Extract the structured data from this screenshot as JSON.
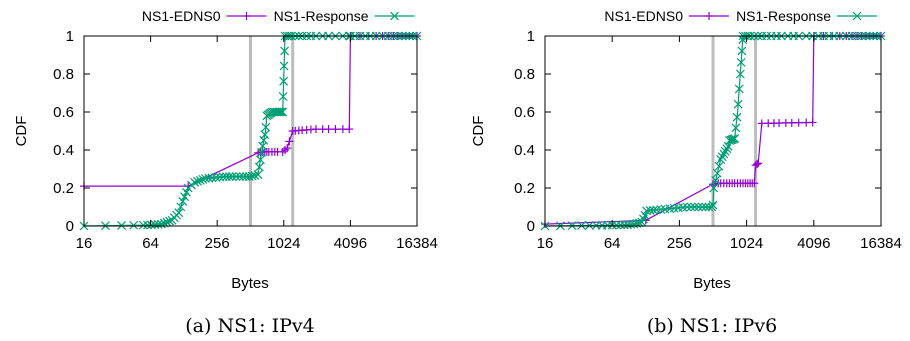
{
  "figure": {
    "panels": [
      {
        "caption": "(a)  NS1: IPv4",
        "chart_data": {
          "type": "line",
          "xlabel": "Bytes",
          "ylabel": "CDF",
          "xscale": "log2",
          "xlim": [
            16,
            16384
          ],
          "ylim": [
            0,
            1
          ],
          "xticks": [
            "16",
            "64",
            "256",
            "1024",
            "4096",
            "16384"
          ],
          "yticks": [
            "0",
            "0.2",
            "0.4",
            "0.6",
            "0.8",
            "1"
          ],
          "grid": false,
          "legend": "top-center",
          "vlines": [
            512,
            1232
          ],
          "series": [
            {
              "name": "NS1-EDNS0",
              "color": "#9400d3",
              "marker": "plus",
              "x": [
                16,
                140,
                600,
                650,
                1000,
                1100,
                1232,
                2000,
                4000,
                4096,
                16384
              ],
              "y": [
                0.21,
                0.21,
                0.385,
                0.39,
                0.39,
                0.41,
                0.5,
                0.51,
                0.51,
                1.0,
                1.0
              ],
              "markers_x": [
                16,
                140,
                600,
                630,
                660,
                690,
                720,
                750,
                800,
                850,
                900,
                1000,
                1050,
                1100,
                1150,
                1232,
                1300,
                1400,
                1500,
                1650,
                1800,
                2000,
                2300,
                2600,
                3000,
                3500,
                4000,
                4096,
                5000,
                6000,
                7000,
                8000,
                9000,
                10000,
                11000,
                12000,
                13000,
                14000,
                15000,
                16384
              ]
            },
            {
              "name": "NS1-Response",
              "color": "#009e73",
              "marker": "cross",
              "x": [
                16,
                60,
                80,
                100,
                115,
                125,
                140,
                160,
                200,
                300,
                500,
                600,
                650,
                700,
                720,
                800,
                900,
                1000,
                1050,
                16384
              ],
              "y": [
                0,
                0.005,
                0.01,
                0.03,
                0.07,
                0.13,
                0.2,
                0.23,
                0.25,
                0.26,
                0.26,
                0.27,
                0.4,
                0.5,
                0.58,
                0.6,
                0.6,
                0.6,
                1.0,
                1.0
              ],
              "markers_x": [
                16,
                25,
                35,
                45,
                55,
                60,
                65,
                70,
                75,
                80,
                85,
                90,
                95,
                100,
                105,
                110,
                115,
                120,
                125,
                130,
                135,
                140,
                150,
                160,
                170,
                180,
                190,
                200,
                215,
                230,
                250,
                270,
                290,
                310,
                330,
                350,
                380,
                410,
                440,
                470,
                500,
                530,
                560,
                600,
                615,
                630,
                645,
                660,
                675,
                690,
                705,
                720,
                740,
                760,
                780,
                800,
                830,
                860,
                890,
                920,
                950,
                980,
                1000,
                1010,
                1020,
                1030,
                1040,
                1050,
                1100,
                1150,
                1200,
                1300,
                1400,
                1500,
                1650,
                1800,
                2000,
                2300,
                2600,
                3000,
                3500,
                4000,
                4096,
                4500,
                5000,
                5600,
                6200,
                7000,
                8000,
                9000,
                10000,
                11000,
                12000,
                13000,
                14000,
                15000,
                16384
              ]
            }
          ]
        }
      },
      {
        "caption": "(b) NS1: IPv6",
        "chart_data": {
          "type": "line",
          "xlabel": "Bytes",
          "ylabel": "CDF",
          "xscale": "log2",
          "xlim": [
            16,
            16384
          ],
          "ylim": [
            0,
            1
          ],
          "xticks": [
            "16",
            "64",
            "256",
            "1024",
            "4096",
            "16384"
          ],
          "yticks": [
            "0",
            "0.2",
            "0.4",
            "0.6",
            "0.8",
            "1"
          ],
          "grid": false,
          "legend": "top-center",
          "vlines": [
            512,
            1232
          ],
          "series": [
            {
              "name": "NS1-EDNS0",
              "color": "#9400d3",
              "marker": "plus",
              "x": [
                16,
                128,
                512,
                520,
                1200,
                1232,
                1300,
                1400,
                4000,
                4096,
                16384
              ],
              "y": [
                0.01,
                0.03,
                0.22,
                0.225,
                0.225,
                0.32,
                0.33,
                0.54,
                0.545,
                1.0,
                1.0
              ],
              "markers_x": [
                16,
                128,
                512,
                540,
                570,
                600,
                640,
                680,
                720,
                760,
                800,
                850,
                900,
                950,
                1000,
                1050,
                1100,
                1150,
                1200,
                1232,
                1270,
                1300,
                1400,
                1600,
                1800,
                2000,
                2300,
                2600,
                3000,
                3500,
                4000,
                4096,
                5000,
                6000,
                7000,
                8000,
                9000,
                10000,
                11000,
                12000,
                13000,
                14000,
                15000,
                16384
              ]
            },
            {
              "name": "NS1-Response",
              "color": "#009e73",
              "marker": "cross",
              "x": [
                16,
                80,
                100,
                118,
                125,
                130,
                200,
                300,
                400,
                500,
                512,
                520,
                600,
                700,
                720,
                800,
                850,
                900,
                950,
                16384
              ],
              "y": [
                0,
                0.005,
                0.01,
                0.02,
                0.05,
                0.08,
                0.09,
                0.1,
                0.1,
                0.1,
                0.11,
                0.2,
                0.35,
                0.42,
                0.45,
                0.46,
                0.6,
                0.8,
                1.0,
                1.0
              ],
              "markers_x": [
                16,
                22,
                28,
                34,
                40,
                46,
                52,
                58,
                64,
                70,
                76,
                82,
                88,
                94,
                100,
                106,
                112,
                118,
                122,
                126,
                130,
                140,
                150,
                160,
                175,
                190,
                210,
                230,
                250,
                275,
                300,
                325,
                350,
                380,
                410,
                440,
                470,
                500,
                512,
                520,
                540,
                560,
                580,
                600,
                620,
                640,
                660,
                680,
                700,
                720,
                740,
                760,
                780,
                800,
                820,
                840,
                860,
                880,
                900,
                915,
                930,
                945,
                950,
                1000,
                1050,
                1100,
                1200,
                1300,
                1400,
                1550,
                1700,
                1900,
                2100,
                2400,
                2700,
                3000,
                3500,
                4000,
                4500,
                5000,
                5600,
                6200,
                7000,
                8000,
                9000,
                10000,
                11000,
                12000,
                13000,
                14000,
                15000,
                16384
              ]
            }
          ]
        }
      }
    ]
  }
}
